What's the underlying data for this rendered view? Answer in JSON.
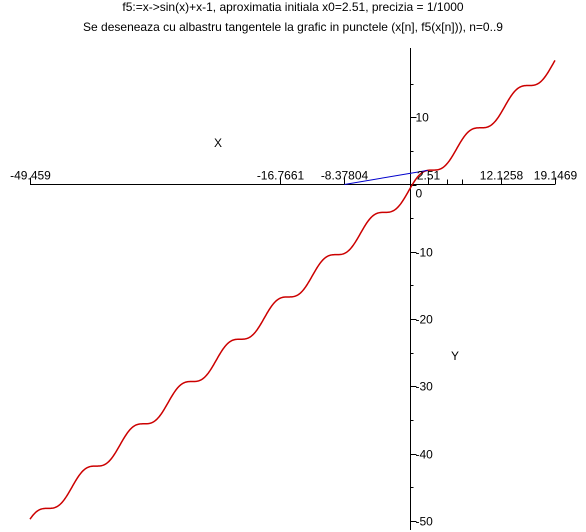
{
  "header": {
    "line1": "f5:=x->sin(x)+x-1, aproximatia initiala x0=2.51,  precizia = 1/1000",
    "line2": "Se deseneaza cu albastru tangentele la grafic in punctele (x[n], f5(x[n])), n=0..9"
  },
  "chart_data": {
    "type": "line",
    "function": "sin(x)+x-1",
    "xlabel": "X",
    "ylabel": "Y",
    "xlim": [
      -49.459,
      19.1469
    ],
    "ylim": [
      -50,
      19
    ],
    "x_ticks": [
      -49.459,
      -16.7661,
      -8.37804,
      2.51,
      12.1258,
      19.1469
    ],
    "x_tick_labels": [
      "-49.459",
      "-16.7661",
      "-8.37804",
      "2.51",
      "12.1258",
      "19.1469"
    ],
    "y_ticks": [
      10,
      0,
      -10,
      -20,
      -30,
      -40,
      -50
    ],
    "y_tick_labels": [
      "10",
      "0",
      "-10",
      "-20",
      "-30",
      "-40",
      "-50"
    ],
    "grid": false,
    "series": [
      {
        "color": "#cc0000",
        "x_range": [
          -49.459,
          19.1469
        ]
      }
    ],
    "tangents": [
      {
        "color": "#0000cc",
        "x0": 2.51,
        "x_intercept": -8.37804
      }
    ]
  }
}
